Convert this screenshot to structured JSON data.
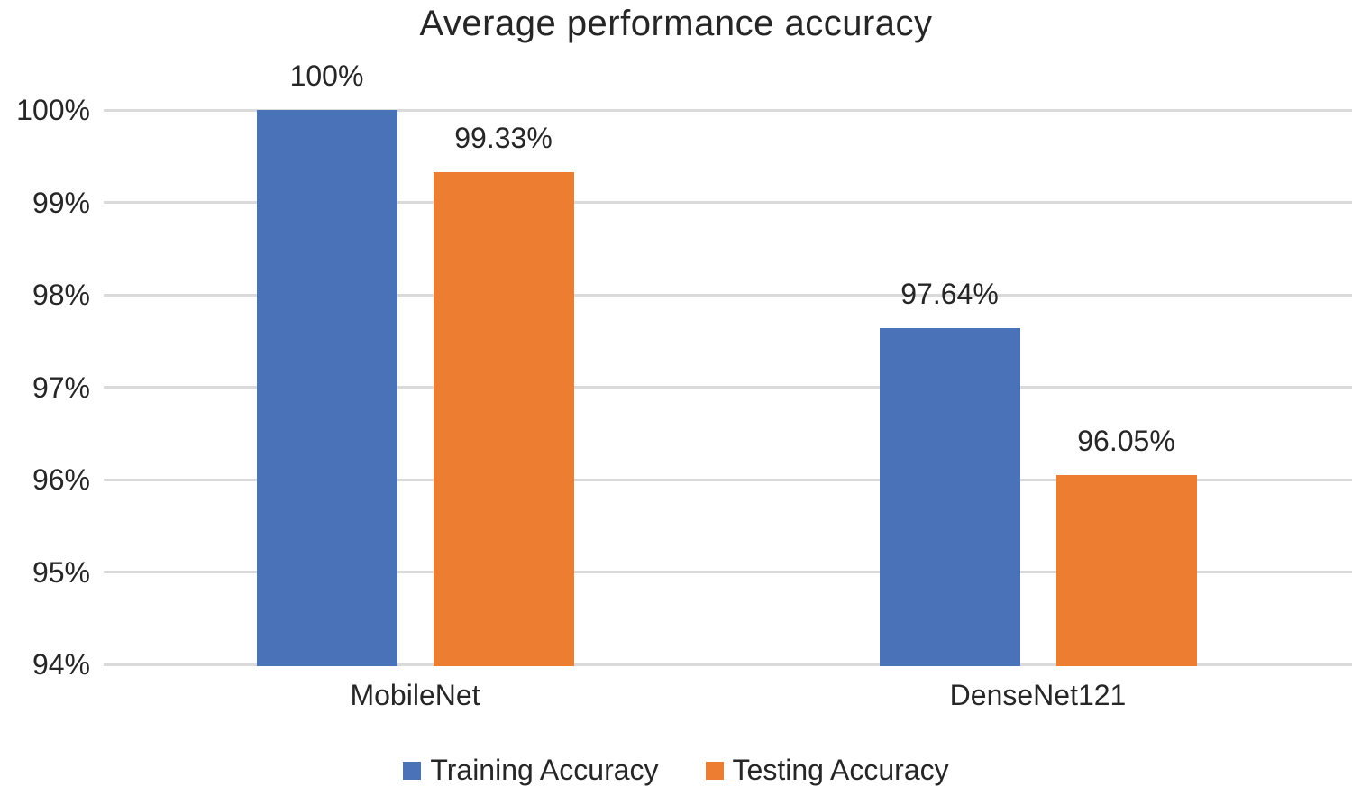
{
  "chart_data": {
    "type": "bar",
    "title": "Average performance accuracy",
    "categories": [
      "MobileNet",
      "DenseNet121"
    ],
    "series": [
      {
        "name": "Training Accuracy",
        "color": "#4A72B8",
        "values": [
          100,
          97.64
        ],
        "value_labels": [
          "100%",
          "97.64%"
        ]
      },
      {
        "name": "Testing Accuracy",
        "color": "#ED7D31",
        "values": [
          99.33,
          96.05
        ],
        "value_labels": [
          "99.33%",
          "96.05%"
        ]
      }
    ],
    "xlabel": "",
    "ylabel": "",
    "ylim": [
      94,
      100
    ],
    "yticks": [
      94,
      95,
      96,
      97,
      98,
      99,
      100
    ],
    "ytick_labels": [
      "94%",
      "95%",
      "96%",
      "97%",
      "98%",
      "99%",
      "100%"
    ],
    "grid": true,
    "legend_position": "bottom",
    "grid_color": "#DADADA",
    "text_color": "#262626",
    "background_color": "#FFFFFF"
  }
}
